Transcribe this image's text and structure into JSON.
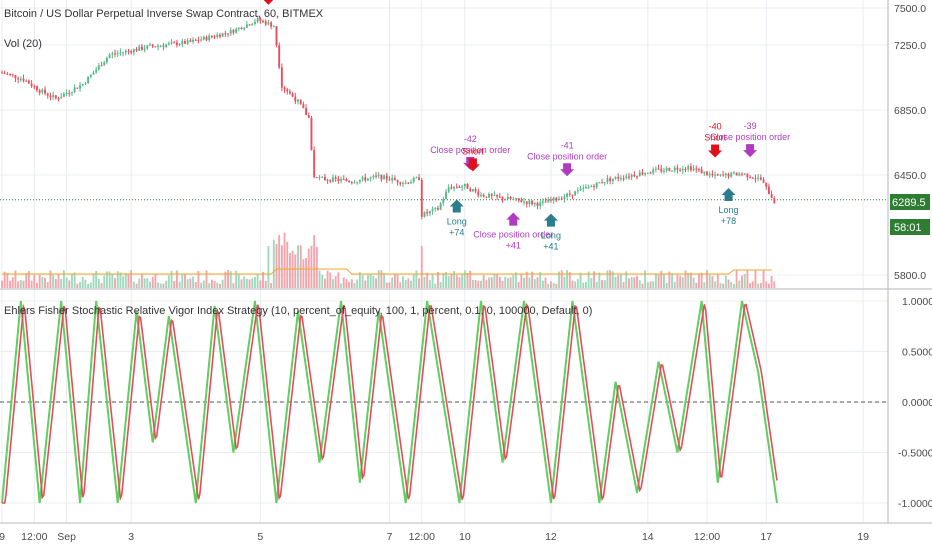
{
  "colors": {
    "up": "#53b987",
    "down": "#eb4d5c",
    "grid": "#e8edf2",
    "axis_text": "#4a4a4a",
    "last_price_bg": "#2e7d32",
    "long_marker": "#2a7d8c",
    "short_marker": "#e0101b",
    "close_marker": "#b03bbf",
    "volume_up": "#9fd9bd",
    "volume_down": "#f2a5ac",
    "volume_ma": "#f5a623",
    "fisher_line": "#5fcf5f",
    "trigger_line": "#e0505a",
    "zero_line": "#555555"
  },
  "header": {
    "symbol_title": "Bitcoin / US Dollar Perpetual Inverse Swap Contract, 60, BITMEX",
    "volume_label": "Vol (20)"
  },
  "price_axis": {
    "ticks": [
      "7500.0",
      "7250.0",
      "6850.0",
      "6450.0",
      "5800.0"
    ],
    "tick_values": [
      7500,
      7250,
      6850,
      6450,
      5800
    ],
    "last_price": "6289.5",
    "countdown": "58:01"
  },
  "indicator": {
    "title": "Ehlers Fisher Stochastic Relative Vigor Index Strategy (10, percent_of_equity, 100, 1, percent, 0.1, 0, 100000, Default, 0)",
    "ticks": [
      "1.0000",
      "0.5000",
      "0.0000",
      "-0.5000",
      "-1.0000"
    ],
    "tick_values": [
      1,
      0.5,
      0,
      -0.5,
      -1
    ]
  },
  "time_axis": {
    "labels": [
      {
        "text": "9",
        "t": 0
      },
      {
        "text": "12:00",
        "t": 12
      },
      {
        "text": "Sep",
        "t": 24
      },
      {
        "text": "3",
        "t": 48
      },
      {
        "text": "5",
        "t": 96
      },
      {
        "text": "7",
        "t": 144
      },
      {
        "text": "12:00",
        "t": 156
      },
      {
        "text": "10",
        "t": 172
      },
      {
        "text": "12",
        "t": 204
      },
      {
        "text": "14",
        "t": 240
      },
      {
        "text": "12:00",
        "t": 262
      },
      {
        "text": "17",
        "t": 284
      },
      {
        "text": "19",
        "t": 320
      }
    ]
  },
  "trades": [
    {
      "kind": "short",
      "dir": "down",
      "t": 99,
      "text": []
    },
    {
      "kind": "close",
      "dir": "down",
      "t": 174,
      "text": [
        "-42",
        "Close position order"
      ]
    },
    {
      "kind": "short",
      "dir": "down",
      "t": 175,
      "text": [
        "Short"
      ]
    },
    {
      "kind": "long",
      "dir": "up",
      "t": 169,
      "text": [
        "Long",
        "+74"
      ]
    },
    {
      "kind": "close",
      "dir": "up",
      "t": 190,
      "text": [
        "Close position order",
        "+41"
      ]
    },
    {
      "kind": "close",
      "dir": "down",
      "t": 210,
      "text": [
        "-41",
        "Close position order"
      ]
    },
    {
      "kind": "long",
      "dir": "up",
      "t": 204,
      "text": [
        "Long",
        "+41"
      ]
    },
    {
      "kind": "short",
      "dir": "down",
      "t": 265,
      "text": [
        "-40",
        "Short"
      ]
    },
    {
      "kind": "long",
      "dir": "up",
      "t": 270,
      "text": [
        "Long",
        "+78"
      ]
    },
    {
      "kind": "close",
      "dir": "down",
      "t": 278,
      "text": [
        "-39",
        "Close position order"
      ]
    }
  ],
  "chart_data": {
    "type": "candlestick",
    "timeframe": "60",
    "exchange": "BITMEX",
    "price_range": [
      5800,
      7550
    ],
    "oscillator_range": [
      -1,
      1
    ],
    "price_path_hourly_anchors": [
      {
        "t": 0,
        "price": 7080
      },
      {
        "t": 8,
        "price": 7040
      },
      {
        "t": 14,
        "price": 6970
      },
      {
        "t": 20,
        "price": 6920
      },
      {
        "t": 30,
        "price": 7010
      },
      {
        "t": 40,
        "price": 7190
      },
      {
        "t": 55,
        "price": 7240
      },
      {
        "t": 70,
        "price": 7270
      },
      {
        "t": 85,
        "price": 7340
      },
      {
        "t": 95,
        "price": 7420
      },
      {
        "t": 101,
        "price": 7380
      },
      {
        "t": 104,
        "price": 7000
      },
      {
        "t": 110,
        "price": 6900
      },
      {
        "t": 114,
        "price": 6800
      },
      {
        "t": 116,
        "price": 6430
      },
      {
        "t": 130,
        "price": 6410
      },
      {
        "t": 140,
        "price": 6440
      },
      {
        "t": 150,
        "price": 6400
      },
      {
        "t": 155,
        "price": 6430
      },
      {
        "t": 156,
        "price": 6190
      },
      {
        "t": 162,
        "price": 6230
      },
      {
        "t": 166,
        "price": 6370
      },
      {
        "t": 172,
        "price": 6380
      },
      {
        "t": 178,
        "price": 6320
      },
      {
        "t": 190,
        "price": 6290
      },
      {
        "t": 200,
        "price": 6260
      },
      {
        "t": 212,
        "price": 6330
      },
      {
        "t": 225,
        "price": 6420
      },
      {
        "t": 240,
        "price": 6470
      },
      {
        "t": 255,
        "price": 6500
      },
      {
        "t": 265,
        "price": 6440
      },
      {
        "t": 275,
        "price": 6460
      },
      {
        "t": 282,
        "price": 6420
      },
      {
        "t": 287,
        "price": 6280
      }
    ],
    "oscillator_cycle_turns": [
      {
        "t": 0,
        "v": -1
      },
      {
        "t": 7,
        "v": 1
      },
      {
        "t": 14,
        "v": -1
      },
      {
        "t": 22,
        "v": 1
      },
      {
        "t": 29,
        "v": -1
      },
      {
        "t": 35,
        "v": 1
      },
      {
        "t": 43,
        "v": -1
      },
      {
        "t": 50,
        "v": 0.9
      },
      {
        "t": 56,
        "v": -0.4
      },
      {
        "t": 62,
        "v": 0.85
      },
      {
        "t": 72,
        "v": -1
      },
      {
        "t": 79,
        "v": 0.95
      },
      {
        "t": 86,
        "v": -0.5
      },
      {
        "t": 94,
        "v": 1
      },
      {
        "t": 102,
        "v": -1
      },
      {
        "t": 110,
        "v": 0.9
      },
      {
        "t": 118,
        "v": -0.6
      },
      {
        "t": 126,
        "v": 1
      },
      {
        "t": 133,
        "v": -0.8
      },
      {
        "t": 140,
        "v": 0.9
      },
      {
        "t": 150,
        "v": -1
      },
      {
        "t": 158,
        "v": 1
      },
      {
        "t": 170,
        "v": -1
      },
      {
        "t": 178,
        "v": 1
      },
      {
        "t": 186,
        "v": -0.6
      },
      {
        "t": 194,
        "v": 1
      },
      {
        "t": 204,
        "v": -1
      },
      {
        "t": 212,
        "v": 1
      },
      {
        "t": 222,
        "v": -1
      },
      {
        "t": 228,
        "v": 0.2
      },
      {
        "t": 236,
        "v": -0.9
      },
      {
        "t": 244,
        "v": 0.4
      },
      {
        "t": 251,
        "v": -0.5
      },
      {
        "t": 260,
        "v": 1
      },
      {
        "t": 266,
        "v": -0.8
      },
      {
        "t": 275,
        "v": 1
      },
      {
        "t": 281,
        "v": 0.3
      },
      {
        "t": 288,
        "v": -1
      }
    ]
  }
}
